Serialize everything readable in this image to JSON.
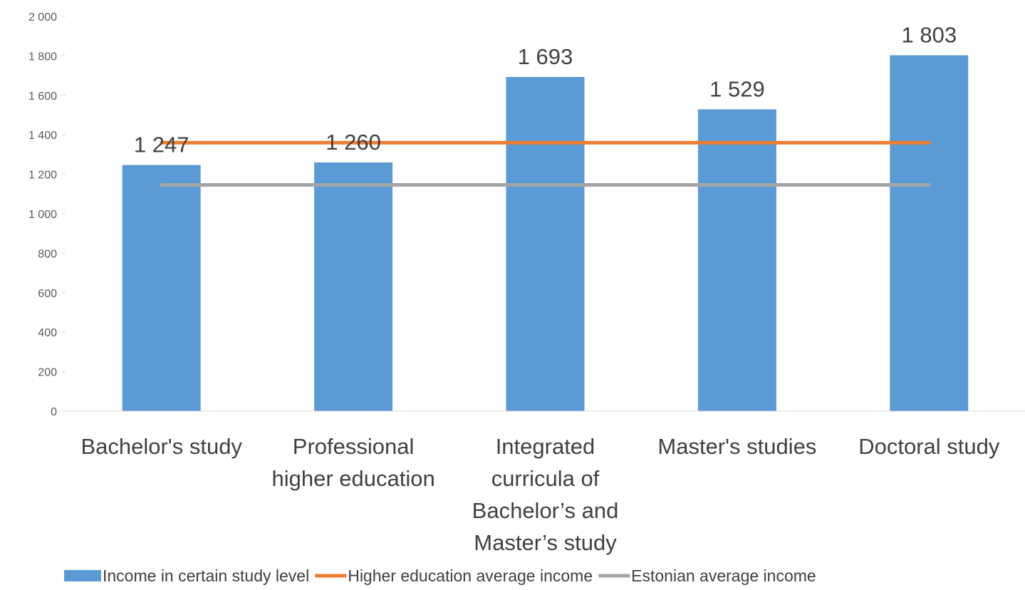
{
  "chart_data": {
    "type": "bar",
    "categories": [
      [
        "Bachelor's study"
      ],
      [
        "Professional",
        "higher education"
      ],
      [
        "Integrated",
        "curricula of",
        "Bachelor’s and",
        "Master’s study"
      ],
      [
        "Master's studies"
      ],
      [
        "Doctoral study"
      ]
    ],
    "series": [
      {
        "name": "Income in certain study level",
        "type": "bar",
        "color": "#5B9BD5",
        "values": [
          1247,
          1260,
          1693,
          1529,
          1803
        ],
        "labels": [
          "1 247",
          "1 260",
          "1 693",
          "1 529",
          "1 803"
        ]
      },
      {
        "name": "Higher education average income",
        "type": "line",
        "color": "#ED7D31",
        "values": [
          1360,
          1360,
          1360,
          1360,
          1360
        ]
      },
      {
        "name": "Estonian average income",
        "type": "line",
        "color": "#A5A5A5",
        "values": [
          1146,
          1146,
          1146,
          1146,
          1146
        ]
      }
    ],
    "y_ticks": [
      0,
      200,
      400,
      600,
      800,
      1000,
      1200,
      1400,
      1600,
      1800,
      2000
    ],
    "y_tick_labels": [
      "0",
      "200",
      "400",
      "600",
      "800",
      "1 000",
      "1 200",
      "1 400",
      "1 600",
      "1 800",
      "2 000"
    ],
    "ylim": [
      0,
      2000
    ],
    "grid": false,
    "legend_position": "bottom",
    "title": "",
    "xlabel": "",
    "ylabel": ""
  }
}
